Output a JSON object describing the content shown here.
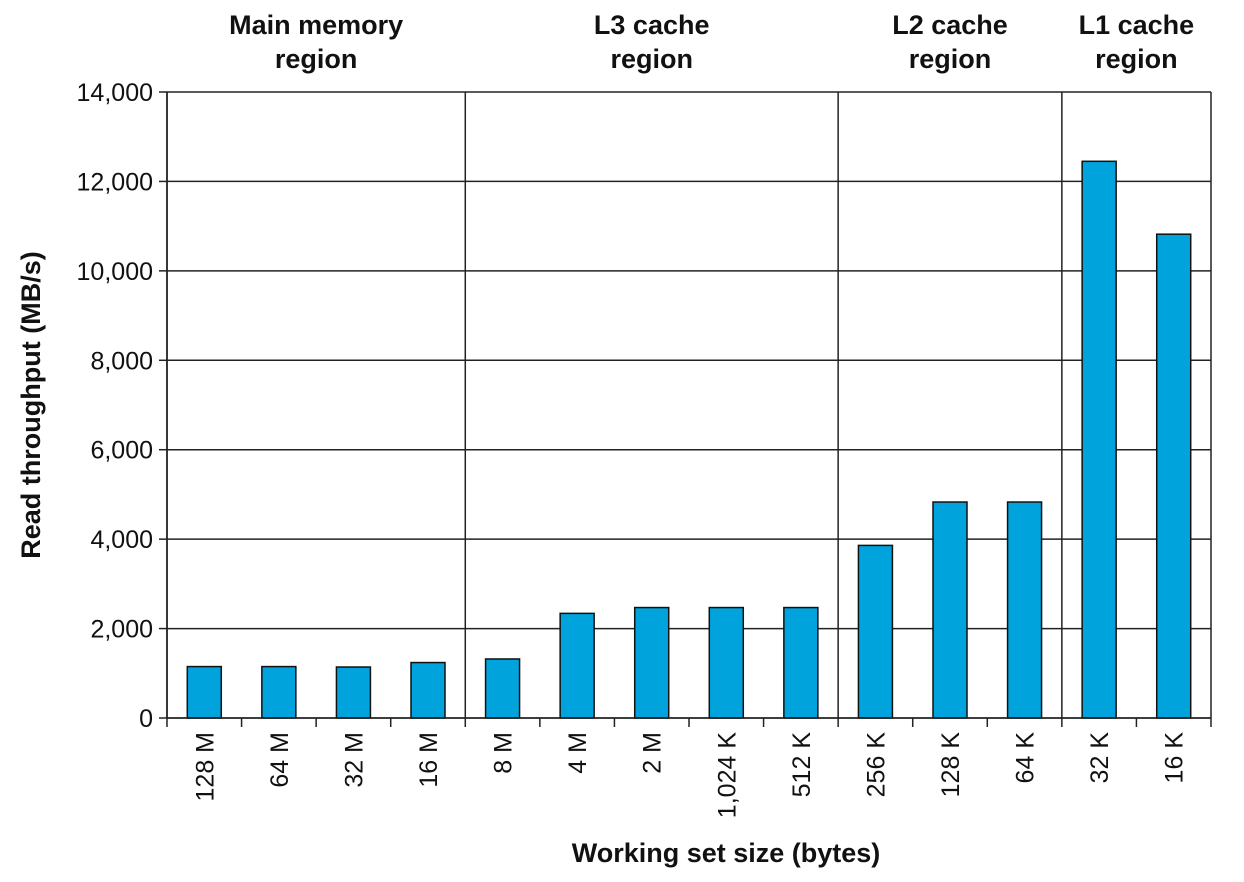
{
  "chart_data": {
    "type": "bar",
    "xlabel": "Working set size (bytes)",
    "ylabel": "Read throughput (MB/s)",
    "ylim": [
      0,
      14000
    ],
    "y_ticks": [
      0,
      2000,
      4000,
      6000,
      8000,
      10000,
      12000,
      14000
    ],
    "y_tick_labels": [
      "0",
      "2,000",
      "4,000",
      "6,000",
      "8,000",
      "10,000",
      "12,000",
      "14,000"
    ],
    "grid": true,
    "bar_color": "#00a3dc",
    "categories": [
      "128 M",
      "64 M",
      "32 M",
      "16 M",
      "8 M",
      "4 M",
      "2 M",
      "1,024 K",
      "512 K",
      "256 K",
      "128 K",
      "64 K",
      "32 K",
      "16 K"
    ],
    "values": [
      1150,
      1150,
      1140,
      1240,
      1320,
      2340,
      2470,
      2470,
      2470,
      3860,
      4830,
      4830,
      12450,
      10820
    ],
    "regions": [
      {
        "line1": "Main memory",
        "line2": "region",
        "start": 0,
        "end": 3
      },
      {
        "line1": "L3 cache",
        "line2": "region",
        "start": 4,
        "end": 8
      },
      {
        "line1": "L2 cache",
        "line2": "region",
        "start": 9,
        "end": 11
      },
      {
        "line1": "L1 cache",
        "line2": "region",
        "start": 12,
        "end": 13
      }
    ]
  }
}
